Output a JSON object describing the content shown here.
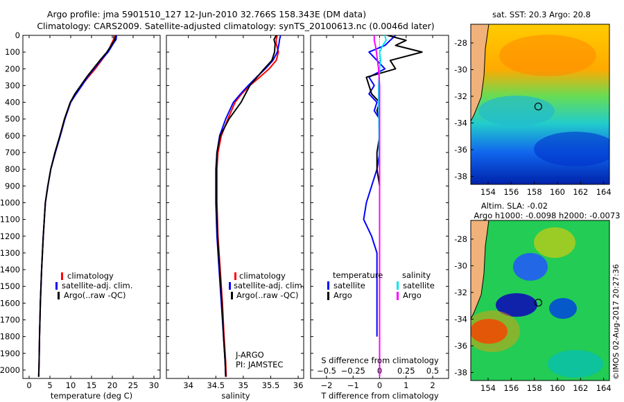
{
  "header": {
    "title_line1": "Argo profile: jma 5901510_127 12-Jun-2010 32.766S 158.343E (DM data)",
    "title_line2": "Climatology: CARS2009. Satellite-adjusted climatology: synTS_20100613.nc (0.0046d later)"
  },
  "colors": {
    "climatology": "#ff0000",
    "satellite": "#0000ff",
    "argo": "#000000",
    "salinity_satellite": "#00e5ee",
    "salinity_argo": "#ff00ff"
  },
  "chart_data": [
    {
      "type": "line",
      "id": "temperature",
      "xlabel": "temperature (deg C)",
      "ylabel": "",
      "xlim": [
        -1.5,
        31.5
      ],
      "ylim": [
        2050,
        0
      ],
      "xticks": [
        0,
        5,
        10,
        15,
        20,
        25,
        30
      ],
      "xtick_labels": [
        "0",
        "5",
        "10",
        "15",
        "20",
        "25",
        "30"
      ],
      "yticks": [
        0,
        100,
        200,
        300,
        400,
        500,
        600,
        700,
        800,
        900,
        1000,
        1100,
        1200,
        1300,
        1400,
        1500,
        1600,
        1700,
        1800,
        1900,
        2000
      ],
      "ytick_labels": [
        "0",
        "100",
        "200",
        "300",
        "400",
        "500",
        "600",
        "700",
        "800",
        "900",
        "1000",
        "1100",
        "1200",
        "1300",
        "1400",
        "1500",
        "1600",
        "1700",
        "1800",
        "1900",
        "2000"
      ],
      "legend": [
        "climatology",
        "satellite-adj. clim.",
        "Argo(..raw -QC)"
      ],
      "legend_position": "lower-center",
      "series": [
        {
          "name": "climatology",
          "color": "#ff0000",
          "x": [
            20.4,
            20.3,
            19.8,
            18.9,
            17.4,
            15.9,
            14.2,
            12.6,
            11.1,
            9.9,
            8.5,
            7.4,
            6.3,
            5.2,
            4.5,
            3.9,
            3.4,
            3.0,
            2.7,
            2.5,
            2.4,
            2.3
          ],
          "y": [
            0,
            25,
            50,
            100,
            150,
            200,
            250,
            300,
            350,
            400,
            500,
            600,
            700,
            800,
            900,
            1000,
            1200,
            1400,
            1600,
            1800,
            1950,
            2040
          ]
        },
        {
          "name": "satellite",
          "color": "#0000ff",
          "x": [
            21.0,
            20.9,
            20.2,
            19.0,
            17.2,
            15.6,
            14.0,
            12.7,
            11.3,
            10.0,
            8.6,
            7.5,
            6.3,
            5.2,
            4.5,
            3.9,
            3.4,
            3.0,
            2.7,
            2.5,
            2.4,
            2.3
          ],
          "y": [
            0,
            25,
            50,
            100,
            150,
            200,
            250,
            300,
            350,
            400,
            500,
            600,
            700,
            800,
            900,
            1000,
            1200,
            1400,
            1600,
            1800,
            1950,
            2040
          ]
        },
        {
          "name": "argo",
          "color": "#000000",
          "x": [
            20.8,
            20.6,
            20.0,
            18.7,
            17.0,
            15.4,
            13.8,
            12.4,
            11.0,
            9.9,
            8.5,
            7.4,
            6.2,
            5.2,
            4.5,
            3.9,
            3.4,
            3.0,
            2.7,
            2.5,
            2.4,
            2.3
          ],
          "y": [
            0,
            25,
            50,
            100,
            150,
            200,
            250,
            300,
            350,
            400,
            500,
            600,
            700,
            800,
            900,
            1000,
            1200,
            1400,
            1600,
            1800,
            1950,
            2040
          ]
        }
      ]
    },
    {
      "type": "line",
      "id": "salinity",
      "xlabel": "salinity",
      "xlim": [
        33.6,
        36.1
      ],
      "ylim": [
        2050,
        0
      ],
      "xticks": [
        34,
        34.5,
        35,
        35.5,
        36
      ],
      "xtick_labels": [
        "34",
        "34.5",
        "35",
        "35.5",
        "36"
      ],
      "legend": [
        "climatology",
        "satellite-adj. clim.",
        "Argo(..raw -QC)"
      ],
      "legend_position": "lower-right",
      "annotation_line1": "J-ARGO",
      "annotation_line2": "PI: JAMSTEC",
      "series": [
        {
          "name": "climatology",
          "color": "#ff0000",
          "x": [
            35.62,
            35.6,
            35.6,
            35.64,
            35.6,
            35.47,
            35.3,
            35.12,
            34.97,
            34.85,
            34.72,
            34.6,
            34.54,
            34.52,
            34.52,
            34.52,
            34.54,
            34.58,
            34.62,
            34.65,
            34.68,
            34.69
          ],
          "y": [
            0,
            25,
            50,
            100,
            150,
            200,
            250,
            300,
            350,
            400,
            500,
            600,
            700,
            800,
            900,
            1000,
            1200,
            1400,
            1600,
            1800,
            1950,
            2040
          ]
        },
        {
          "name": "satellite",
          "color": "#0000ff",
          "x": [
            35.68,
            35.66,
            35.65,
            35.62,
            35.54,
            35.4,
            35.24,
            35.09,
            34.95,
            34.82,
            34.68,
            34.57,
            34.52,
            34.5,
            34.5,
            34.5,
            34.52,
            34.56,
            34.6,
            34.64,
            34.67,
            34.68
          ],
          "y": [
            0,
            25,
            50,
            100,
            150,
            200,
            250,
            300,
            350,
            400,
            500,
            600,
            700,
            800,
            900,
            1000,
            1200,
            1400,
            1600,
            1800,
            1950,
            2040
          ]
        },
        {
          "name": "argo",
          "color": "#000000",
          "x": [
            35.6,
            35.56,
            35.58,
            35.57,
            35.52,
            35.38,
            35.25,
            35.12,
            35.04,
            34.96,
            34.74,
            34.58,
            34.52,
            34.51,
            34.51,
            34.51,
            34.53,
            34.57,
            34.61,
            34.64,
            34.67,
            34.68
          ],
          "y": [
            0,
            25,
            50,
            100,
            150,
            200,
            250,
            300,
            350,
            400,
            500,
            600,
            700,
            800,
            900,
            1000,
            1200,
            1400,
            1600,
            1800,
            1950,
            2040
          ]
        }
      ]
    },
    {
      "type": "line",
      "id": "difference",
      "xlabel": "T difference from climatology",
      "xlabel2": "S difference from climatology",
      "xlim": [
        -2.6,
        2.6
      ],
      "ylim": [
        2050,
        0
      ],
      "xticks": [
        -2,
        -1,
        0,
        1,
        2
      ],
      "xtick_labels": [
        "−2",
        "−1",
        "0",
        "1",
        "2"
      ],
      "top_ticks": [
        -0.5,
        -0.25,
        0,
        0.25,
        0.5
      ],
      "top_tick_labels": [
        "−0.5",
        "−0.25",
        "0",
        "0.25",
        "0.5"
      ],
      "top_tick_scale": 4,
      "legend_temperature_title": "temperature",
      "legend_salinity_title": "salinity",
      "legend_temperature": [
        "satellite",
        "Argo"
      ],
      "legend_salinity": [
        "satellite",
        "Argo"
      ],
      "series": [
        {
          "name": "T satellite",
          "color": "#0000ff",
          "x": [
            0.6,
            0.4,
            0.2,
            -0.4,
            -0.1,
            0.2,
            -0.4,
            -0.2,
            -0.4,
            -0.1,
            -0.2,
            0.0,
            0.0,
            0.0,
            -0.1,
            -0.3,
            -0.5,
            -0.6,
            -0.3,
            -0.1,
            -0.1,
            -0.1
          ],
          "y": [
            0,
            30,
            60,
            100,
            150,
            200,
            250,
            300,
            350,
            400,
            450,
            500,
            600,
            700,
            800,
            900,
            1000,
            1100,
            1200,
            1300,
            1400,
            1800
          ]
        },
        {
          "name": "T argo",
          "color": "#000000",
          "x": [
            0.3,
            1.0,
            0.6,
            1.6,
            0.4,
            0.6,
            -0.5,
            -0.4,
            -0.3,
            0.0,
            -0.1,
            0.0,
            0.0,
            -0.1,
            -0.1,
            0.0,
            0.0,
            0.0,
            0.0,
            0.0,
            0.0
          ],
          "y": [
            0,
            30,
            60,
            100,
            150,
            200,
            250,
            300,
            350,
            400,
            450,
            500,
            600,
            700,
            800,
            900,
            1000,
            1200,
            1400,
            1600,
            1800
          ]
        },
        {
          "name": "S satellite",
          "color": "#00e5ee",
          "x": [
            0.2,
            0.24,
            0.12,
            0.0,
            0.04,
            0.0,
            -0.04,
            -0.04,
            -0.03,
            -0.02,
            -0.02,
            0.0,
            0.0,
            0.0,
            0.0,
            0.0,
            0.0
          ],
          "y": [
            0,
            30,
            60,
            100,
            150,
            200,
            300,
            400,
            500,
            600,
            700,
            800,
            1000,
            1200,
            1500,
            1800,
            2040
          ]
        },
        {
          "name": "S argo",
          "color": "#ff00ff",
          "x": [
            -0.2,
            -0.2,
            -0.16,
            -0.12,
            -0.08,
            -0.04,
            0.0,
            0.0,
            0.0,
            0.0,
            0.0,
            0.0,
            0.0,
            0.0,
            0.0,
            0.0
          ],
          "y": [
            0,
            30,
            60,
            100,
            150,
            200,
            300,
            400,
            500,
            600,
            700,
            800,
            1000,
            1200,
            1500,
            2040
          ]
        }
      ]
    },
    {
      "type": "heatmap",
      "id": "sst_map",
      "title": "sat. SST: 20.3 Argo: 20.8",
      "xlim": [
        152.5,
        164.5
      ],
      "ylim": [
        -38.6,
        -26.6
      ],
      "xticks": [
        154,
        156,
        158,
        160,
        162,
        164
      ],
      "xtick_labels": [
        "154",
        "156",
        "158",
        "160",
        "162",
        "164"
      ],
      "yticks": [
        -28,
        -30,
        -32,
        -34,
        -36,
        -38
      ],
      "ytick_labels": [
        "-28",
        "-30",
        "-32",
        "-34",
        "-36",
        "-38"
      ],
      "marker": {
        "lon": 158.343,
        "lat": -32.766
      }
    },
    {
      "type": "heatmap",
      "id": "sla_map",
      "title_line1": "Altim. SLA: -0.02",
      "title_line2": "Argo h1000: -0.0098 h2000: -0.0073",
      "xlim": [
        152.5,
        164.5
      ],
      "ylim": [
        -38.6,
        -26.6
      ],
      "xticks": [
        154,
        156,
        158,
        160,
        162,
        164
      ],
      "xtick_labels": [
        "154",
        "156",
        "158",
        "160",
        "162",
        "164"
      ],
      "yticks": [
        -28,
        -30,
        -32,
        -34,
        -36,
        -38
      ],
      "ytick_labels": [
        "-28",
        "-30",
        "-32",
        "-34",
        "-36",
        "-38"
      ],
      "marker": {
        "lon": 158.343,
        "lat": -32.766
      }
    }
  ],
  "footer": {
    "credit": "©IMOS 02-Aug-2017 20:27:36"
  }
}
